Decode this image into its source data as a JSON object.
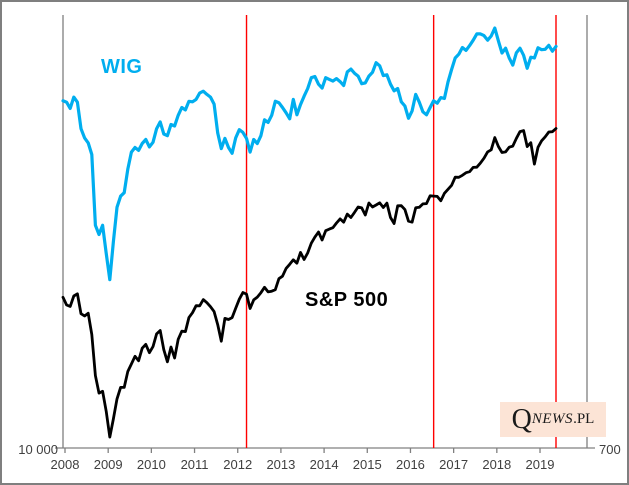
{
  "labels": {
    "wig": "WIG",
    "sp500": "S&P 500",
    "left_axis_min": "10 000",
    "right_axis_min": "700"
  },
  "watermark": {
    "q": "Q",
    "news": "NEWS",
    "pl": ".PL",
    "bg_color": "#FCE4D6"
  },
  "x_axis": {
    "ticks": [
      "2008",
      "2009",
      "2010",
      "2011",
      "2012",
      "2013",
      "2014",
      "2015",
      "2016",
      "2017",
      "2018",
      "2019"
    ]
  },
  "chart_data": {
    "type": "line",
    "title": "",
    "x_unit": "month",
    "start": "2008-01",
    "end": "2019-06",
    "grid": false,
    "left_axis": {
      "label_series": "WIG",
      "min": 10000,
      "max": 70000,
      "scale": "log",
      "shown_tick": "10 000"
    },
    "right_axis": {
      "label_series": "S&P 500",
      "min": 700,
      "max": 4900,
      "scale": "log",
      "shown_tick": "700"
    },
    "axis_color": "#808080",
    "event_lines": {
      "color": "#FF0000",
      "positions": [
        "2012-04",
        "2016-08",
        "2019-06"
      ]
    },
    "series": [
      {
        "name": "WIG",
        "axis": "left",
        "color": "#00AEEF",
        "stroke_width": 3.2,
        "values": [
          47600,
          47300,
          46000,
          48400,
          47300,
          42000,
          40300,
          39400,
          37400,
          27200,
          26100,
          27200,
          24000,
          21300,
          25300,
          29500,
          31000,
          31500,
          35000,
          37800,
          38600,
          38100,
          39300,
          40000,
          38700,
          39500,
          42000,
          43300,
          41000,
          40700,
          42800,
          42500,
          44600,
          46200,
          45700,
          47500,
          47400,
          47900,
          49300,
          49700,
          49000,
          48400,
          46900,
          41200,
          38400,
          40200,
          38600,
          37600,
          40300,
          41800,
          41300,
          40200,
          37800,
          40000,
          39300,
          40700,
          43700,
          43200,
          44600,
          47500,
          47200,
          46200,
          45100,
          43900,
          47900,
          44700,
          46800,
          48600,
          50300,
          52800,
          53100,
          51300,
          50400,
          52800,
          52400,
          52000,
          52600,
          51900,
          51000,
          54200,
          54900,
          53900,
          53200,
          51400,
          51600,
          53200,
          54100,
          56500,
          55700,
          53300,
          53500,
          51300,
          49800,
          50300,
          47400,
          46500,
          44000,
          45500,
          49000,
          47300,
          45300,
          44700,
          46200,
          47600,
          47100,
          48300,
          48100,
          51800,
          54800,
          57700,
          58700,
          60500,
          59700,
          61000,
          62500,
          64300,
          64300,
          63800,
          62500,
          63700,
          66000,
          62300,
          59000,
          60300,
          57700,
          55900,
          59100,
          60300,
          58400,
          55100,
          57900,
          57700,
          60400,
          59900,
          60000,
          61100,
          59500,
          60800
        ]
      },
      {
        "name": "S&P 500",
        "axis": "right",
        "color": "#000000",
        "stroke_width": 2.8,
        "values": [
          1378,
          1331,
          1323,
          1386,
          1400,
          1280,
          1267,
          1283,
          1166,
          969,
          896,
          903,
          826,
          735,
          798,
          873,
          919,
          919,
          987,
          1021,
          1057,
          1036,
          1096,
          1115,
          1074,
          1104,
          1169,
          1187,
          1089,
          1031,
          1102,
          1049,
          1141,
          1183,
          1181,
          1258,
          1286,
          1327,
          1326,
          1364,
          1345,
          1321,
          1292,
          1219,
          1131,
          1253,
          1247,
          1258,
          1312,
          1366,
          1408,
          1398,
          1310,
          1362,
          1379,
          1407,
          1441,
          1412,
          1416,
          1426,
          1498,
          1515,
          1569,
          1598,
          1631,
          1606,
          1686,
          1633,
          1682,
          1757,
          1806,
          1848,
          1783,
          1859,
          1872,
          1884,
          1924,
          1960,
          1931,
          2003,
          1972,
          2018,
          2068,
          2059,
          1995,
          2105,
          2068,
          2086,
          2107,
          2063,
          2104,
          1972,
          1920,
          2079,
          2080,
          2044,
          1940,
          1932,
          2060,
          2065,
          2097,
          2099,
          2174,
          2171,
          2168,
          2126,
          2199,
          2239,
          2279,
          2364,
          2363,
          2384,
          2412,
          2423,
          2470,
          2472,
          2519,
          2575,
          2648,
          2674,
          2824,
          2714,
          2641,
          2648,
          2705,
          2718,
          2816,
          2902,
          2914,
          2712,
          2760,
          2507,
          2704,
          2784,
          2834,
          2896,
          2900,
          2942
        ]
      }
    ]
  }
}
